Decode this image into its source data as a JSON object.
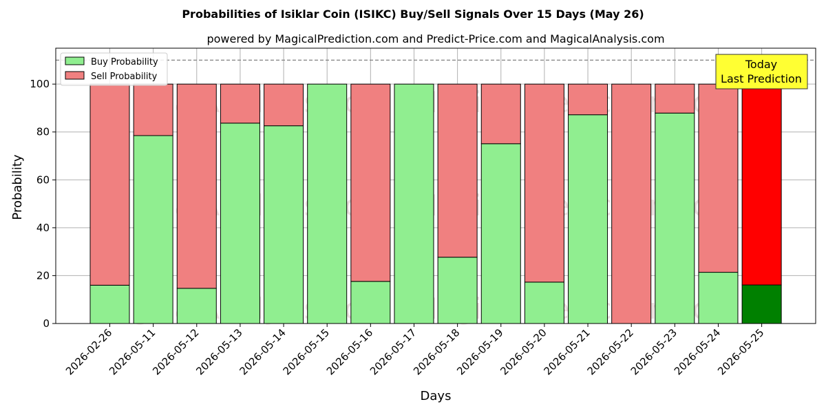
{
  "chart_data": {
    "type": "bar",
    "stacked": true,
    "title": "Probabilities of Isiklar Coin (ISIKC) Buy/Sell Signals Over 15 Days (May 26)",
    "subtitle": "powered by MagicalPrediction.com and Predict-Price.com and MagicalAnalysis.com",
    "xlabel": "Days",
    "ylabel": "Probability",
    "ylim": [
      0,
      115
    ],
    "yticks": [
      0,
      20,
      40,
      60,
      80,
      100
    ],
    "reference_line": 110,
    "grid": true,
    "legend_position": "top-left",
    "categories": [
      "2026-02-26",
      "2026-05-11",
      "2026-05-12",
      "2026-05-13",
      "2026-05-14",
      "2026-05-15",
      "2026-05-16",
      "2026-05-17",
      "2026-05-18",
      "2026-05-19",
      "2026-05-20",
      "2026-05-21",
      "2026-05-22",
      "2026-05-23",
      "2026-05-24",
      "2026-05-25"
    ],
    "series": [
      {
        "name": "Buy Probability",
        "color": "#90ee90",
        "values": [
          16,
          78.5,
          14.7,
          83.7,
          82.6,
          100,
          17.6,
          100,
          27.7,
          75.1,
          17.3,
          87.2,
          0,
          87.9,
          21.4,
          16.1
        ]
      },
      {
        "name": "Sell Probability",
        "color": "#f08080",
        "values": [
          84,
          21.5,
          85.3,
          16.3,
          17.4,
          0,
          82.4,
          0,
          72.3,
          24.9,
          82.7,
          12.8,
          100,
          12.1,
          78.6,
          83.9
        ]
      }
    ],
    "highlight": {
      "index": 15,
      "buy_color": "#008000",
      "sell_color": "#ff0000"
    },
    "annotation": {
      "line1": "Today",
      "line2": "Last Prediction",
      "color": "#ffff33"
    },
    "watermarks": [
      "MagicalAnalysis.com",
      "MagicalPrediction.com"
    ]
  }
}
